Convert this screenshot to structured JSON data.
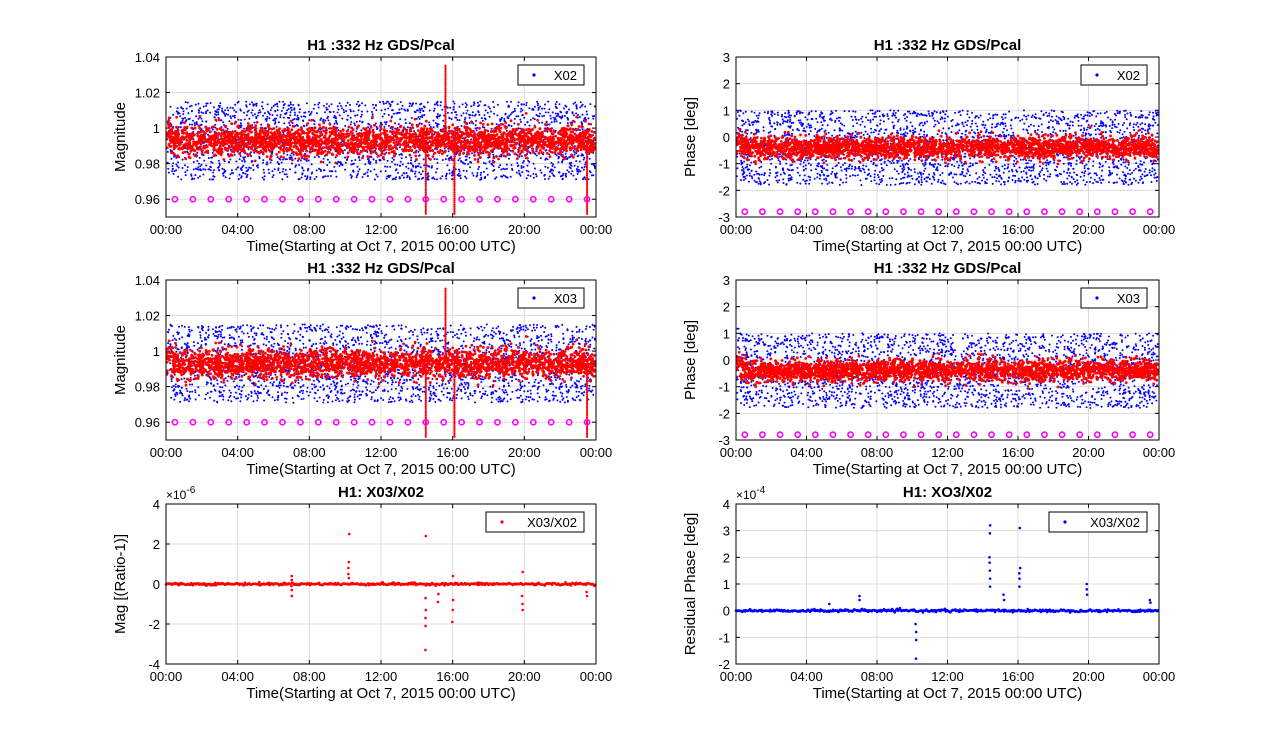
{
  "colors": {
    "blue": "#0000ff",
    "red": "#ff0000",
    "magenta": "#ff00ff",
    "grid": "#dcdcdc",
    "axis": "#000000"
  },
  "chart_data": [
    {
      "type": "scatter",
      "title": "H1 :332 Hz GDS/Pcal",
      "xlabel": "Time(Starting at Oct 7, 2015 00:00 UTC)",
      "ylabel": "Magnitude",
      "xlim": [
        0,
        24
      ],
      "ylim": [
        0.95,
        1.04
      ],
      "yticks": [
        "0.96",
        "0.98",
        "1",
        "1.02",
        "1.04"
      ],
      "xticks": [
        "00:00",
        "04:00",
        "08:00",
        "12:00",
        "16:00",
        "20:00",
        "00:00"
      ],
      "grid": true,
      "legend": {
        "position": "top-right",
        "entries": [
          "X02"
        ]
      },
      "series": [
        {
          "name": "X02",
          "color": "#0000ff",
          "center": 0.993,
          "spread": 0.022
        },
        {
          "color": "#ff0000",
          "center": 0.993,
          "spread": 0.008
        },
        {
          "color": "#ff00ff",
          "marker": "circle",
          "y": 0.96,
          "x": [
            0.5,
            1.5,
            2.5,
            3.5,
            4.5,
            5.5,
            6.5,
            7.5,
            8.5,
            9.5,
            10.5,
            11.5,
            12.5,
            13.5,
            14.5,
            15.5,
            16.5,
            17.5,
            18.5,
            19.5,
            20.5,
            21.5,
            22.5,
            23.5
          ]
        }
      ]
    },
    {
      "type": "scatter",
      "title": "H1 :332 Hz GDS/Pcal",
      "xlabel": "Time(Starting at Oct 7, 2015 00:00 UTC)",
      "ylabel": "Phase [deg]",
      "xlim": [
        0,
        24
      ],
      "ylim": [
        -3,
        3
      ],
      "yticks": [
        "-3",
        "-2",
        "-1",
        "0",
        "1",
        "2",
        "3"
      ],
      "xticks": [
        "00:00",
        "04:00",
        "08:00",
        "12:00",
        "16:00",
        "20:00",
        "00:00"
      ],
      "grid": true,
      "legend": {
        "position": "top-right",
        "entries": [
          "X02"
        ]
      },
      "series": [
        {
          "name": "X02",
          "color": "#0000ff",
          "center": -0.4,
          "spread": 1.4
        },
        {
          "color": "#ff0000",
          "center": -0.4,
          "spread": 0.4
        },
        {
          "color": "#ff00ff",
          "marker": "circle",
          "y": -2.8,
          "x": [
            0.5,
            1.5,
            2.5,
            3.5,
            4.5,
            5.5,
            6.5,
            7.5,
            8.5,
            9.5,
            10.5,
            11.5,
            12.5,
            13.5,
            14.5,
            15.5,
            16.5,
            17.5,
            18.5,
            19.5,
            20.5,
            21.5,
            22.5,
            23.5
          ]
        }
      ]
    },
    {
      "type": "scatter",
      "title": "H1 :332 Hz GDS/Pcal",
      "xlabel": "Time(Starting at Oct 7, 2015 00:00 UTC)",
      "ylabel": "Magnitude",
      "xlim": [
        0,
        24
      ],
      "ylim": [
        0.95,
        1.04
      ],
      "yticks": [
        "0.96",
        "0.98",
        "1",
        "1.02",
        "1.04"
      ],
      "xticks": [
        "00:00",
        "04:00",
        "08:00",
        "12:00",
        "16:00",
        "20:00",
        "00:00"
      ],
      "grid": true,
      "legend": {
        "position": "top-right",
        "entries": [
          "X03"
        ]
      },
      "series": [
        {
          "name": "X03",
          "color": "#0000ff",
          "center": 0.993,
          "spread": 0.022
        },
        {
          "color": "#ff0000",
          "center": 0.993,
          "spread": 0.008
        },
        {
          "color": "#ff00ff",
          "marker": "circle",
          "y": 0.96,
          "x": [
            0.5,
            1.5,
            2.5,
            3.5,
            4.5,
            5.5,
            6.5,
            7.5,
            8.5,
            9.5,
            10.5,
            11.5,
            12.5,
            13.5,
            14.5,
            15.5,
            16.5,
            17.5,
            18.5,
            19.5,
            20.5,
            21.5,
            22.5,
            23.5
          ]
        }
      ]
    },
    {
      "type": "scatter",
      "title": "H1 :332 Hz GDS/Pcal",
      "xlabel": "Time(Starting at Oct 7, 2015 00:00 UTC)",
      "ylabel": "Phase [deg]",
      "xlim": [
        0,
        24
      ],
      "ylim": [
        -3,
        3
      ],
      "yticks": [
        "-3",
        "-2",
        "-1",
        "0",
        "1",
        "2",
        "3"
      ],
      "xticks": [
        "00:00",
        "04:00",
        "08:00",
        "12:00",
        "16:00",
        "20:00",
        "00:00"
      ],
      "grid": true,
      "legend": {
        "position": "top-right",
        "entries": [
          "X03"
        ]
      },
      "series": [
        {
          "name": "X03",
          "color": "#0000ff",
          "center": -0.4,
          "spread": 1.4
        },
        {
          "color": "#ff0000",
          "center": -0.4,
          "spread": 0.4
        },
        {
          "color": "#ff00ff",
          "marker": "circle",
          "y": -2.8,
          "x": [
            0.5,
            1.5,
            2.5,
            3.5,
            4.5,
            5.5,
            6.5,
            7.5,
            8.5,
            9.5,
            10.5,
            11.5,
            12.5,
            13.5,
            14.5,
            15.5,
            16.5,
            17.5,
            18.5,
            19.5,
            20.5,
            21.5,
            22.5,
            23.5
          ]
        }
      ]
    },
    {
      "type": "scatter",
      "title": "H1: X03/X02",
      "xlabel": "Time(Starting at Oct 7, 2015 00:00 UTC)",
      "ylabel": "Mag [(Ratio-1)]",
      "exponent": "×10",
      "exponent_power": "-6",
      "xlim": [
        0,
        24
      ],
      "ylim": [
        -4,
        4
      ],
      "yticks": [
        "-4",
        "-2",
        "0",
        "2",
        "4"
      ],
      "xticks": [
        "00:00",
        "04:00",
        "08:00",
        "12:00",
        "16:00",
        "20:00",
        "00:00"
      ],
      "grid": true,
      "legend": {
        "position": "top-right",
        "entries": [
          "X03/X02"
        ]
      },
      "series": [
        {
          "name": "X03/X02",
          "color": "#ff0000",
          "baseline": 0,
          "spikes": [
            {
              "x": 7.0,
              "y": [
                0.4,
                0.2,
                -0.3,
                -0.6
              ]
            },
            {
              "x": 10.2,
              "y": [
                2.5,
                1.1,
                0.8,
                0.5,
                0.3
              ]
            },
            {
              "x": 14.5,
              "y": [
                2.4,
                -0.7,
                -1.3,
                -1.7,
                -2.1,
                -3.3
              ]
            },
            {
              "x": 15.2,
              "y": [
                -0.5,
                -0.9
              ]
            },
            {
              "x": 16.0,
              "y": [
                0.4,
                -0.8,
                -1.3,
                -1.9
              ]
            },
            {
              "x": 19.9,
              "y": [
                0.6,
                -0.6,
                -1.0,
                -1.3
              ]
            },
            {
              "x": 23.5,
              "y": [
                -0.4,
                -0.6
              ]
            }
          ]
        }
      ]
    },
    {
      "type": "scatter",
      "title": "H1: XO3/X02",
      "xlabel": "Time(Starting at Oct 7, 2015 00:00 UTC)",
      "ylabel": "Residual Phase [deg]",
      "exponent": "×10",
      "exponent_power": "-4",
      "xlim": [
        0,
        24
      ],
      "ylim": [
        -2,
        4
      ],
      "yticks": [
        "-2",
        "-1",
        "0",
        "1",
        "2",
        "3",
        "4"
      ],
      "xticks": [
        "00:00",
        "04:00",
        "08:00",
        "12:00",
        "16:00",
        "20:00",
        "00:00"
      ],
      "grid": true,
      "legend": {
        "position": "top-right",
        "entries": [
          "X03/X02"
        ]
      },
      "series": [
        {
          "name": "X03/X02",
          "color": "#0000ff",
          "baseline": 0,
          "spikes": [
            {
              "x": 5.3,
              "y": [
                0.25
              ]
            },
            {
              "x": 7.0,
              "y": [
                0.55,
                0.4
              ]
            },
            {
              "x": 10.2,
              "y": [
                -0.5,
                -0.8,
                -1.1,
                -1.8
              ]
            },
            {
              "x": 14.4,
              "y": [
                3.2,
                2.9,
                2.0,
                1.8,
                1.5,
                1.2,
                0.9
              ]
            },
            {
              "x": 15.2,
              "y": [
                0.6,
                0.4
              ]
            },
            {
              "x": 16.1,
              "y": [
                3.1,
                1.6,
                1.4,
                1.2,
                0.9
              ]
            },
            {
              "x": 19.9,
              "y": [
                1.0,
                0.8,
                0.6
              ]
            },
            {
              "x": 23.5,
              "y": [
                0.4,
                0.3
              ]
            }
          ]
        }
      ]
    }
  ]
}
